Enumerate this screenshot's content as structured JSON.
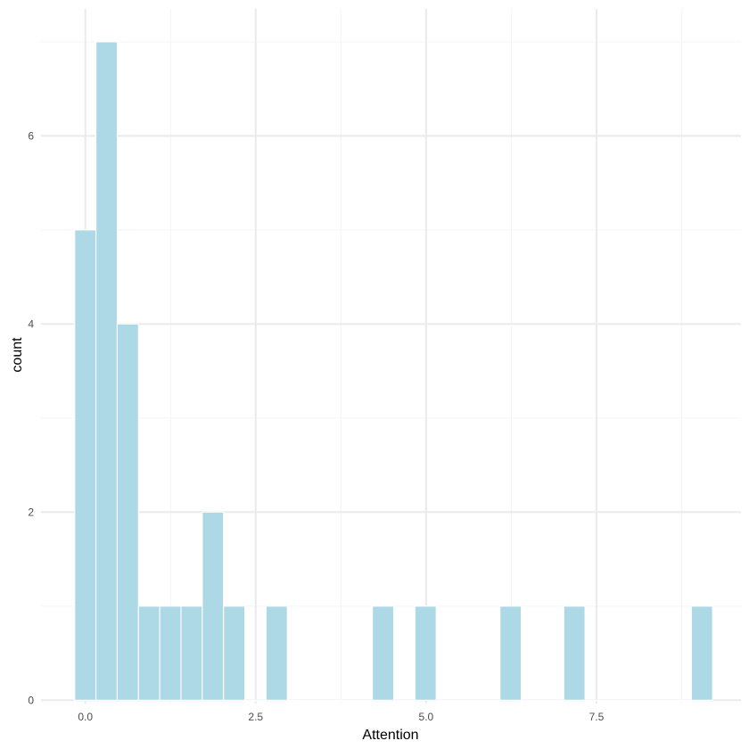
{
  "chart_data": {
    "type": "bar",
    "title": "",
    "xlabel": "Attention",
    "ylabel": "count",
    "xlim": [
      -0.65,
      9.62
    ],
    "ylim": [
      -0.035,
      7.35
    ],
    "x_ticks": [
      0.0,
      2.5,
      5.0,
      7.5
    ],
    "x_tick_labels": [
      "0.0",
      "2.5",
      "5.0",
      "7.5"
    ],
    "y_ticks": [
      0,
      2,
      4,
      6
    ],
    "y_tick_labels": [
      "0",
      "2",
      "4",
      "6"
    ],
    "x_minor_gridlines": [
      1.25,
      3.75,
      6.25,
      8.75
    ],
    "y_minor_gridlines": [
      1,
      3,
      5,
      7
    ],
    "grid": true,
    "legend": "none",
    "bin_width": 0.312,
    "bins": [
      {
        "center": 0.0,
        "count": 5
      },
      {
        "center": 0.312,
        "count": 7
      },
      {
        "center": 0.624,
        "count": 4
      },
      {
        "center": 0.936,
        "count": 1
      },
      {
        "center": 1.248,
        "count": 1
      },
      {
        "center": 1.56,
        "count": 1
      },
      {
        "center": 1.872,
        "count": 2
      },
      {
        "center": 2.184,
        "count": 1
      },
      {
        "center": 2.496,
        "count": 0
      },
      {
        "center": 2.808,
        "count": 1
      },
      {
        "center": 3.12,
        "count": 0
      },
      {
        "center": 3.432,
        "count": 0
      },
      {
        "center": 3.744,
        "count": 0
      },
      {
        "center": 4.056,
        "count": 0
      },
      {
        "center": 4.368,
        "count": 1
      },
      {
        "center": 4.68,
        "count": 0
      },
      {
        "center": 4.992,
        "count": 1
      },
      {
        "center": 5.304,
        "count": 0
      },
      {
        "center": 5.616,
        "count": 0
      },
      {
        "center": 5.928,
        "count": 0
      },
      {
        "center": 6.24,
        "count": 1
      },
      {
        "center": 6.552,
        "count": 0
      },
      {
        "center": 6.864,
        "count": 0
      },
      {
        "center": 7.176,
        "count": 1
      },
      {
        "center": 7.488,
        "count": 0
      },
      {
        "center": 7.8,
        "count": 0
      },
      {
        "center": 8.112,
        "count": 0
      },
      {
        "center": 8.424,
        "count": 0
      },
      {
        "center": 8.736,
        "count": 0
      },
      {
        "center": 9.048,
        "count": 1
      }
    ],
    "colors": {
      "bar_fill": "#add8e6",
      "bar_outline": "#ffffff",
      "major_grid": "#ebebeb",
      "minor_grid": "#f5f5f5",
      "tick_text": "#4d4d4d",
      "axis_title": "#000000",
      "background": "#ffffff"
    }
  }
}
